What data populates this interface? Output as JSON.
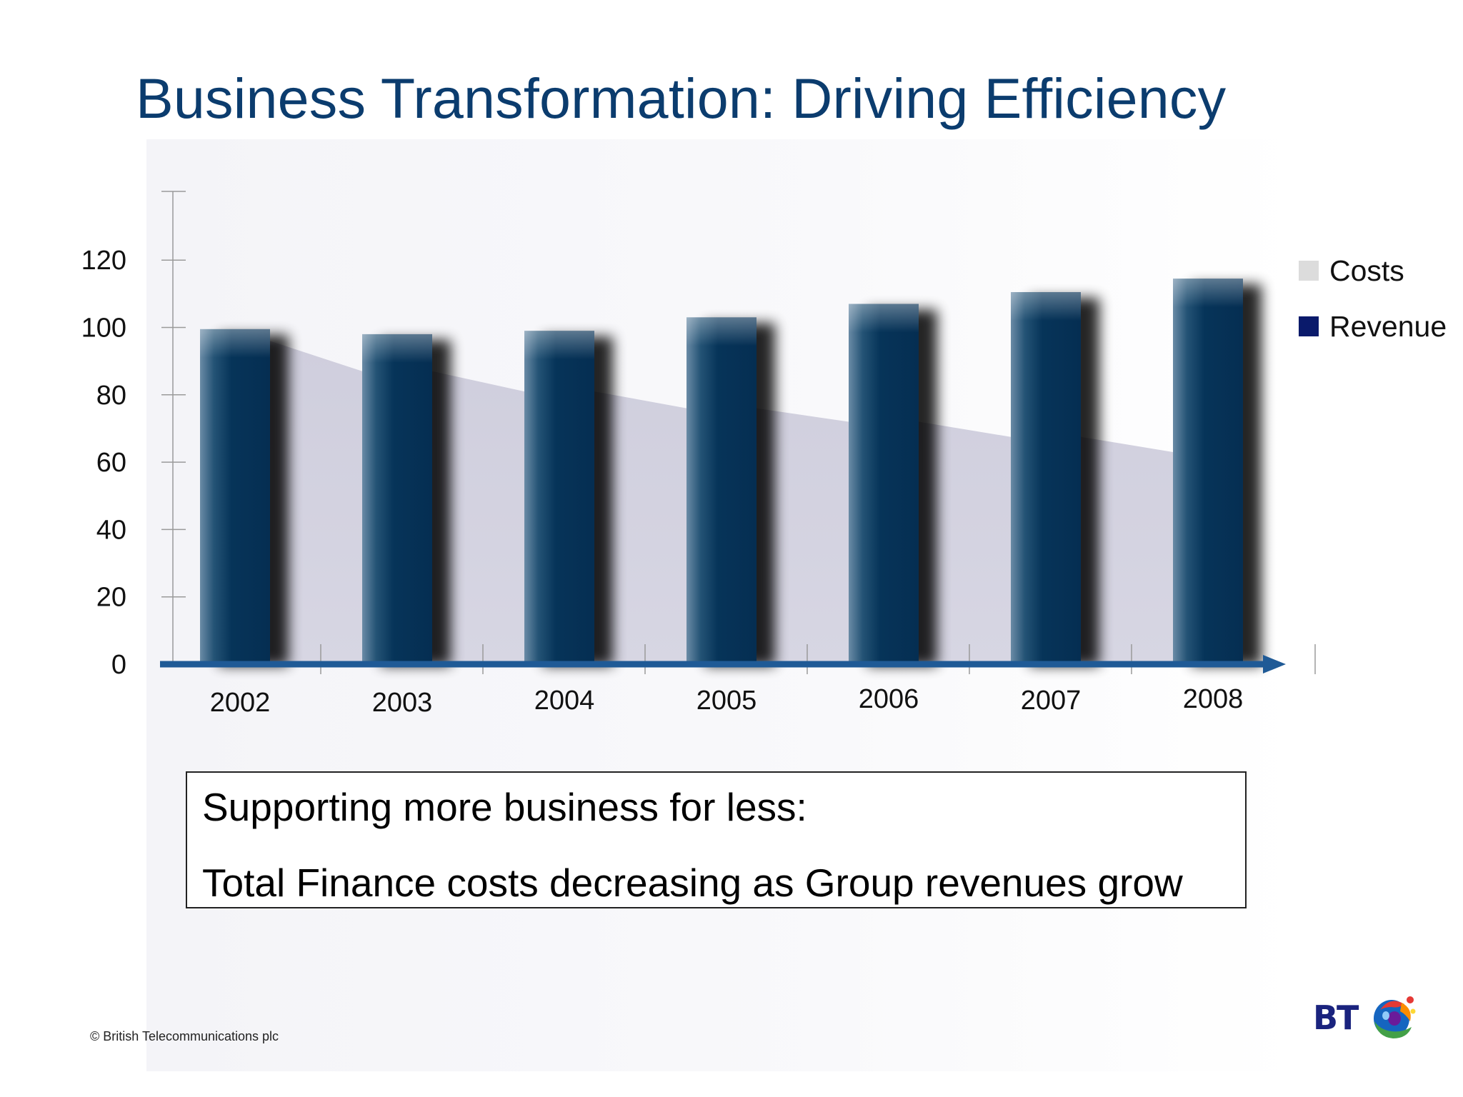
{
  "title": "Business Transformation: Driving Efficiency",
  "chart_data": {
    "type": "bar",
    "categories": [
      "2002",
      "2003",
      "2004",
      "2005",
      "2006",
      "2007",
      "2008"
    ],
    "series": [
      {
        "name": "Costs",
        "kind": "area",
        "values": [
          96,
          87,
          81,
          76,
          72,
          67.5,
          63
        ]
      },
      {
        "name": "Revenue",
        "kind": "bar",
        "values": [
          99.5,
          98,
          99,
          103,
          107,
          110.5,
          114.5
        ]
      }
    ],
    "y_ticks": [
      "0",
      "20",
      "40",
      "60",
      "80",
      "100",
      "120"
    ],
    "ylim": [
      0,
      140
    ],
    "legend_position": "right",
    "grid": false
  },
  "legend": [
    {
      "label": "Costs",
      "color": "#dcdcdc"
    },
    {
      "label": "Revenue",
      "color": "#0a1a6b"
    }
  ],
  "note": {
    "line1": "Supporting more business for less:",
    "line2": "Total Finance costs decreasing as Group revenues grow"
  },
  "footer": {
    "copyright": "© British Telecommunications plc"
  },
  "logo": {
    "text": "BT",
    "icon": "bt-piper-globe-icon"
  },
  "colors": {
    "title": "#0b3c6e",
    "axis": "#1f5a96",
    "bar": "#063459",
    "area": "#d3d2e0"
  }
}
